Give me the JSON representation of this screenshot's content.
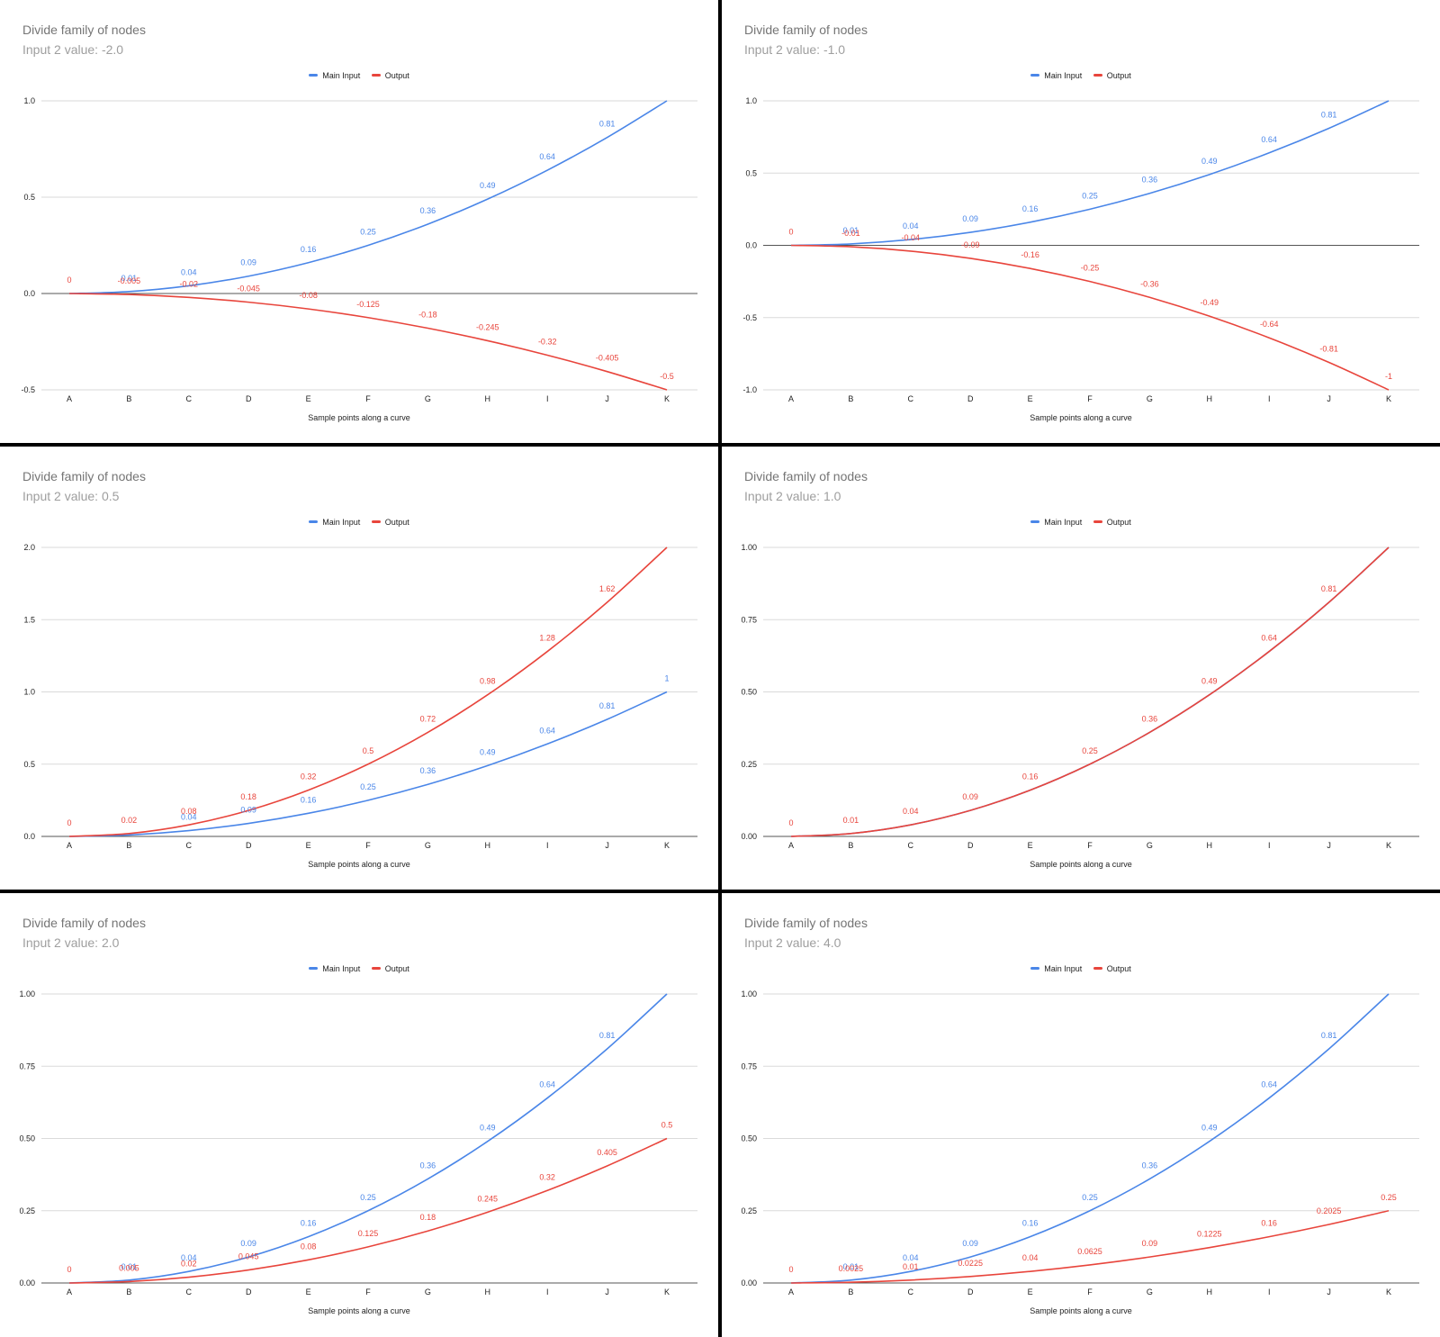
{
  "legend": {
    "series_a": "Main Input",
    "series_b": "Output"
  },
  "xlabel": "Sample points along a curve",
  "colors": {
    "main_input": "#4a86e8",
    "output": "#e8453c",
    "grid": "#dadada",
    "zero": "#555555",
    "text": "#222222"
  },
  "chart_data": [
    {
      "type": "line",
      "title": "Divide family of nodes",
      "subtitle": "Input 2 value: -2.0",
      "xlabel": "Sample points along a curve",
      "categories": [
        "A",
        "B",
        "C",
        "D",
        "E",
        "F",
        "G",
        "H",
        "I",
        "J",
        "K"
      ],
      "ylim": [
        -0.5,
        1.0
      ],
      "yticks": [
        "-0.5",
        "0.0",
        "0.5",
        "1.0"
      ],
      "grid": true,
      "legend_position": "top-center",
      "series": [
        {
          "name": "Main Input",
          "values": [
            0,
            0.01,
            0.04,
            0.09,
            0.16,
            0.25,
            0.36,
            0.49,
            0.64,
            0.81,
            1
          ],
          "labels": [
            "",
            "0.01",
            "0.04",
            "0.09",
            "0.16",
            "0.25",
            "0.36",
            "0.49",
            "0.64",
            "0.81",
            ""
          ]
        },
        {
          "name": "Output",
          "values": [
            0,
            -0.005,
            -0.02,
            -0.045,
            -0.08,
            -0.125,
            -0.18,
            -0.245,
            -0.32,
            -0.405,
            -0.5
          ],
          "labels": [
            "0",
            "-0.005",
            "-0.02",
            "-0.045",
            "-0.08",
            "-0.125",
            "-0.18",
            "-0.245",
            "-0.32",
            "-0.405",
            "-0.5"
          ]
        }
      ]
    },
    {
      "type": "line",
      "title": "Divide family of nodes",
      "subtitle": "Input 2 value: -1.0",
      "xlabel": "Sample points along a curve",
      "categories": [
        "A",
        "B",
        "C",
        "D",
        "E",
        "F",
        "G",
        "H",
        "I",
        "J",
        "K"
      ],
      "ylim": [
        -1.0,
        1.0
      ],
      "yticks": [
        "-1.0",
        "-0.5",
        "0.0",
        "0.5",
        "1.0"
      ],
      "grid": true,
      "legend_position": "top-center",
      "series": [
        {
          "name": "Main Input",
          "values": [
            0,
            0.01,
            0.04,
            0.09,
            0.16,
            0.25,
            0.36,
            0.49,
            0.64,
            0.81,
            1
          ],
          "labels": [
            "",
            "0.01",
            "0.04",
            "0.09",
            "0.16",
            "0.25",
            "0.36",
            "0.49",
            "0.64",
            "0.81",
            ""
          ]
        },
        {
          "name": "Output",
          "values": [
            0,
            -0.01,
            -0.04,
            -0.09,
            -0.16,
            -0.25,
            -0.36,
            -0.49,
            -0.64,
            -0.81,
            -1
          ],
          "labels": [
            "0",
            "-0.01",
            "-0.04",
            "-0.09",
            "-0.16",
            "-0.25",
            "-0.36",
            "-0.49",
            "-0.64",
            "-0.81",
            "-1"
          ]
        }
      ]
    },
    {
      "type": "line",
      "title": "Divide family of nodes",
      "subtitle": "Input 2 value: 0.5",
      "xlabel": "Sample points along a curve",
      "categories": [
        "A",
        "B",
        "C",
        "D",
        "E",
        "F",
        "G",
        "H",
        "I",
        "J",
        "K"
      ],
      "ylim": [
        0,
        2.0
      ],
      "yticks": [
        "0.0",
        "0.5",
        "1.0",
        "1.5",
        "2.0"
      ],
      "grid": true,
      "legend_position": "top-center",
      "series": [
        {
          "name": "Main Input",
          "values": [
            0,
            0.01,
            0.04,
            0.09,
            0.16,
            0.25,
            0.36,
            0.49,
            0.64,
            0.81,
            1
          ],
          "labels": [
            "",
            "",
            "0.04",
            "0.09",
            "0.16",
            "0.25",
            "0.36",
            "0.49",
            "0.64",
            "0.81",
            "1"
          ]
        },
        {
          "name": "Output",
          "values": [
            0,
            0.02,
            0.08,
            0.18,
            0.32,
            0.5,
            0.72,
            0.98,
            1.28,
            1.62,
            2
          ],
          "labels": [
            "0",
            "0.02",
            "0.08",
            "0.18",
            "0.32",
            "0.5",
            "0.72",
            "0.98",
            "1.28",
            "1.62",
            ""
          ]
        }
      ]
    },
    {
      "type": "line",
      "title": "Divide family of nodes",
      "subtitle": "Input 2 value: 1.0",
      "xlabel": "Sample points along a curve",
      "categories": [
        "A",
        "B",
        "C",
        "D",
        "E",
        "F",
        "G",
        "H",
        "I",
        "J",
        "K"
      ],
      "ylim": [
        0,
        1.0
      ],
      "yticks": [
        "0.00",
        "0.25",
        "0.50",
        "0.75",
        "1.00"
      ],
      "grid": true,
      "legend_position": "top-center",
      "series": [
        {
          "name": "Main Input",
          "values": [
            0,
            0.01,
            0.04,
            0.09,
            0.16,
            0.25,
            0.36,
            0.49,
            0.64,
            0.81,
            1
          ],
          "labels": [
            "",
            "",
            "",
            "",
            "",
            "",
            "",
            "",
            "",
            "",
            ""
          ]
        },
        {
          "name": "Output",
          "values": [
            0,
            0.01,
            0.04,
            0.09,
            0.16,
            0.25,
            0.36,
            0.49,
            0.64,
            0.81,
            1
          ],
          "labels": [
            "0",
            "0.01",
            "0.04",
            "0.09",
            "0.16",
            "0.25",
            "0.36",
            "0.49",
            "0.64",
            "0.81",
            ""
          ]
        }
      ]
    },
    {
      "type": "line",
      "title": "Divide family of nodes",
      "subtitle": "Input 2 value: 2.0",
      "xlabel": "Sample points along a curve",
      "categories": [
        "A",
        "B",
        "C",
        "D",
        "E",
        "F",
        "G",
        "H",
        "I",
        "J",
        "K"
      ],
      "ylim": [
        0,
        1.0
      ],
      "yticks": [
        "0.00",
        "0.25",
        "0.50",
        "0.75",
        "1.00"
      ],
      "grid": true,
      "legend_position": "top-center",
      "series": [
        {
          "name": "Main Input",
          "values": [
            0,
            0.01,
            0.04,
            0.09,
            0.16,
            0.25,
            0.36,
            0.49,
            0.64,
            0.81,
            1
          ],
          "labels": [
            "",
            "0.01",
            "0.04",
            "0.09",
            "0.16",
            "0.25",
            "0.36",
            "0.49",
            "0.64",
            "0.81",
            ""
          ]
        },
        {
          "name": "Output",
          "values": [
            0,
            0.005,
            0.02,
            0.045,
            0.08,
            0.125,
            0.18,
            0.245,
            0.32,
            0.405,
            0.5
          ],
          "labels": [
            "0",
            "0.005",
            "0.02",
            "0.045",
            "0.08",
            "0.125",
            "0.18",
            "0.245",
            "0.32",
            "0.405",
            "0.5"
          ]
        }
      ]
    },
    {
      "type": "line",
      "title": "Divide family of nodes",
      "subtitle": "Input 2 value: 4.0",
      "xlabel": "Sample points along a curve",
      "categories": [
        "A",
        "B",
        "C",
        "D",
        "E",
        "F",
        "G",
        "H",
        "I",
        "J",
        "K"
      ],
      "ylim": [
        0,
        1.0
      ],
      "yticks": [
        "0.00",
        "0.25",
        "0.50",
        "0.75",
        "1.00"
      ],
      "grid": true,
      "legend_position": "top-center",
      "series": [
        {
          "name": "Main Input",
          "values": [
            0,
            0.01,
            0.04,
            0.09,
            0.16,
            0.25,
            0.36,
            0.49,
            0.64,
            0.81,
            1
          ],
          "labels": [
            "",
            "0.01",
            "0.04",
            "0.09",
            "0.16",
            "0.25",
            "0.36",
            "0.49",
            "0.64",
            "0.81",
            ""
          ]
        },
        {
          "name": "Output",
          "values": [
            0,
            0.0025,
            0.01,
            0.0225,
            0.04,
            0.0625,
            0.09,
            0.1225,
            0.16,
            0.2025,
            0.25
          ],
          "labels": [
            "0",
            "0.0025",
            "0.01",
            "0.0225",
            "0.04",
            "0.0625",
            "0.09",
            "0.1225",
            "0.16",
            "0.2025",
            "0.25"
          ]
        }
      ]
    }
  ]
}
